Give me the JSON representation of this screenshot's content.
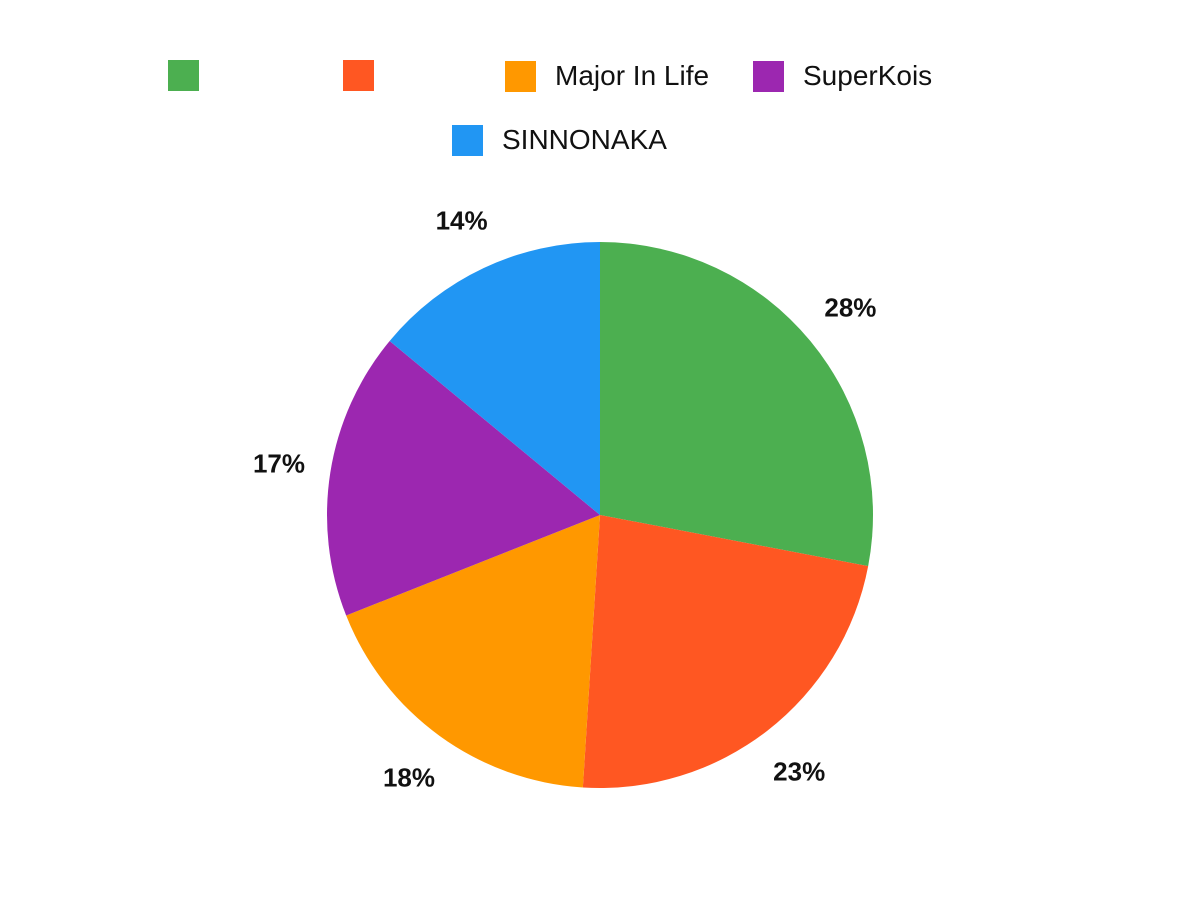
{
  "chart_data": {
    "type": "pie",
    "title": "",
    "categories": [
      "",
      "",
      "Major In Life",
      "SuperKois",
      "SINNONAKA"
    ],
    "values": [
      28,
      23,
      18,
      17,
      14
    ],
    "colors": [
      "#4caf50",
      "#ff5722",
      "#ff9800",
      "#9c27b0",
      "#2196f3"
    ],
    "value_labels": [
      "28%",
      "23%",
      "18%",
      "17%",
      "14%"
    ],
    "legend_position": "top",
    "start_angle": "12 o'clock, clockwise"
  },
  "legend": [
    {
      "label": "",
      "color": "#4caf50"
    },
    {
      "label": "",
      "color": "#ff5722"
    },
    {
      "label": "Major In Life",
      "color": "#ff9800"
    },
    {
      "label": "SuperKois",
      "color": "#9c27b0"
    },
    {
      "label": "SINNONAKA",
      "color": "#2196f3"
    }
  ]
}
